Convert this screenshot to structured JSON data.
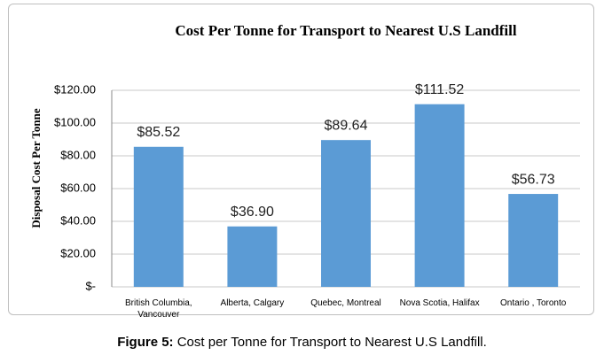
{
  "chart_data": {
    "type": "bar",
    "title": "Cost Per Tonne for Transport to Nearest U.S Landfill",
    "y_label": "Disposal Cost Per Tonne",
    "categories": [
      "British Columbia, Vancouver",
      "Alberta, Calgary",
      "Quebec, Montreal",
      "Nova Scotia, Halifax",
      "Ontario , Toronto"
    ],
    "values": [
      85.52,
      36.9,
      89.64,
      111.52,
      56.73
    ],
    "value_labels": [
      "$85.52",
      "$36.90",
      "$89.64",
      "$111.52",
      "$56.73"
    ],
    "color": "#5b9bd5",
    "ylim": [
      0,
      120
    ],
    "yticks": [
      {
        "value": 0,
        "label": "$-"
      },
      {
        "value": 20,
        "label": "$20.00"
      },
      {
        "value": 40,
        "label": "$40.00"
      },
      {
        "value": 60,
        "label": "$60.00"
      },
      {
        "value": 80,
        "label": "$80.00"
      },
      {
        "value": 100,
        "label": "$100.00"
      },
      {
        "value": 120,
        "label": "$120.00"
      }
    ],
    "grid": true
  },
  "caption": {
    "label": "Figure 5:",
    "text": "Cost per Tonne for Transport to Nearest U.S Landfill."
  }
}
